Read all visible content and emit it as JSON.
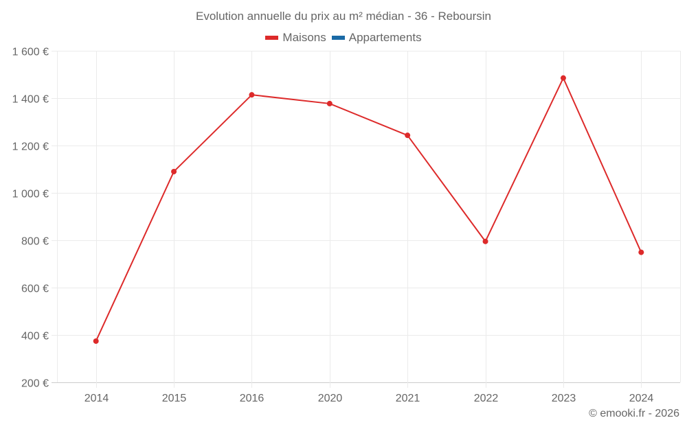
{
  "title": "Evolution annuelle du prix au m² médian - 36 - Reboursin",
  "legend": [
    {
      "label": "Maisons",
      "color": "#d62728"
    },
    {
      "label": "Appartements",
      "color": "#1f77b4"
    }
  ],
  "credit": "© emooki.fr - 2026",
  "colors": {
    "maisons": "#dd2a2a",
    "appartements": "#1a6aa6",
    "grid": "#ebebeb",
    "axis": "#cccccc"
  },
  "chart_data": {
    "type": "line",
    "title": "Evolution annuelle du prix au m² médian - 36 - Reboursin",
    "xlabel": "",
    "ylabel": "",
    "categories": [
      "2014",
      "2015",
      "2016",
      "2020",
      "2021",
      "2022",
      "2023",
      "2024"
    ],
    "series": [
      {
        "name": "Maisons",
        "color": "#dd2a2a",
        "values": [
          374,
          1090,
          1414,
          1377,
          1243,
          795,
          1485,
          749
        ]
      },
      {
        "name": "Appartements",
        "color": "#1a6aa6",
        "values": [
          null,
          null,
          null,
          null,
          null,
          null,
          null,
          null
        ]
      }
    ],
    "ylim": [
      200,
      1600
    ],
    "yticks": [
      200,
      400,
      600,
      800,
      1000,
      1200,
      1400,
      1600
    ],
    "ytick_labels": [
      "200 €",
      "400 €",
      "600 €",
      "800 €",
      "1 000 €",
      "1 200 €",
      "1 400 €",
      "1 600 €"
    ],
    "grid": true,
    "legend_position": "top"
  }
}
